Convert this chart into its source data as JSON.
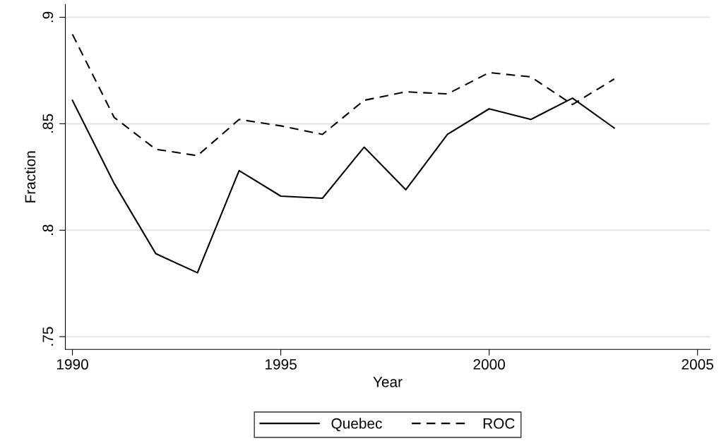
{
  "chart_data": {
    "type": "line",
    "xlabel": "Year",
    "ylabel": "Fraction",
    "x": [
      1990,
      1991,
      1992,
      1993,
      1994,
      1995,
      1996,
      1997,
      1998,
      1999,
      2000,
      2001,
      2002,
      2003
    ],
    "series": [
      {
        "name": "Quebec",
        "color": "#000000",
        "line_style": "solid",
        "values": [
          0.861,
          0.822,
          0.789,
          0.78,
          0.828,
          0.816,
          0.815,
          0.839,
          0.819,
          0.845,
          0.857,
          0.852,
          0.862,
          0.848
        ]
      },
      {
        "name": "ROC",
        "color": "#000000",
        "line_style": "dashed",
        "values": [
          0.892,
          0.853,
          0.838,
          0.835,
          0.852,
          0.849,
          0.845,
          0.861,
          0.865,
          0.864,
          0.874,
          0.872,
          0.859,
          0.871
        ]
      }
    ],
    "xlim": [
      1989.83,
      2005.3
    ],
    "xticks": [
      1990,
      1995,
      2000,
      2005
    ],
    "ylim": [
      0.744,
      0.906
    ],
    "yticks": [
      {
        "value": 0.75,
        "label": ".75"
      },
      {
        "value": 0.8,
        "label": ".8"
      },
      {
        "value": 0.85,
        "label": ".85"
      },
      {
        "value": 0.9,
        "label": ".9"
      }
    ],
    "grid": "y",
    "legend": "bottom",
    "marker": "none"
  }
}
